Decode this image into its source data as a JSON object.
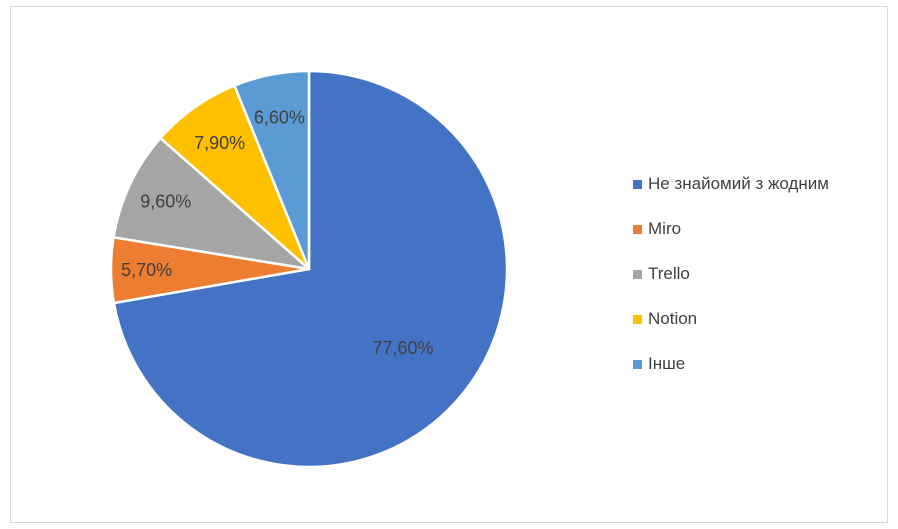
{
  "chart_data": {
    "type": "pie",
    "title": "",
    "start_angle_deg": 0,
    "direction": "clockwise",
    "categories": [
      "Не знайомий з жодним",
      "Miro",
      "Trello",
      "Notion",
      "Інше"
    ],
    "values": [
      77.6,
      5.7,
      9.6,
      7.9,
      6.6
    ],
    "labels": [
      "77,60%",
      "5,70%",
      "9,60%",
      "7,90%",
      "6,60%"
    ],
    "colors": [
      "#4472c4",
      "#ed7d31",
      "#a5a5a5",
      "#ffc000",
      "#5b9bd5"
    ],
    "legend_position": "right"
  }
}
